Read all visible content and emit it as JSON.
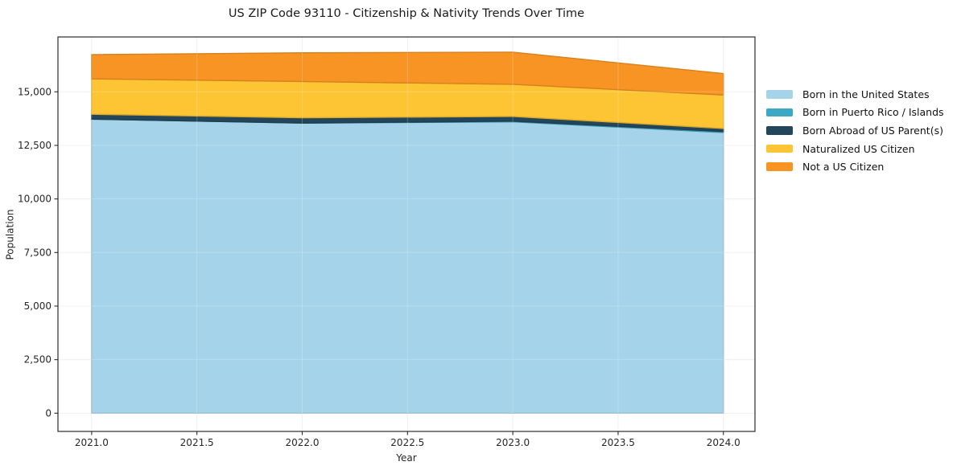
{
  "title": "US ZIP Code 93110 - Citizenship & Nativity Trends Over Time",
  "axes": {
    "xlabel": "Year",
    "ylabel": "Population"
  },
  "chart_data": {
    "type": "area",
    "stacked": true,
    "title": "US ZIP Code 93110 - Citizenship & Nativity Trends Over Time",
    "xlabel": "Year",
    "ylabel": "Population",
    "x": [
      2021,
      2022,
      2023,
      2024
    ],
    "series": [
      {
        "name": "Born in the United States",
        "color": "#a5d3e9",
        "values": [
          13725,
          13540,
          13600,
          13100
        ]
      },
      {
        "name": "Born in Puerto Rico / Islands",
        "color": "#3da8c4",
        "values": [
          0,
          0,
          30,
          50
        ]
      },
      {
        "name": "Born Abroad of US Parent(s)",
        "color": "#24465a",
        "values": [
          230,
          250,
          220,
          140
        ]
      },
      {
        "name": "Naturalized US Citizen",
        "color": "#fdc433",
        "values": [
          1650,
          1690,
          1500,
          1560
        ]
      },
      {
        "name": "Not a US Citizen",
        "color": "#f79423",
        "values": [
          1130,
          1340,
          1500,
          1000
        ]
      }
    ],
    "totals": [
      16735,
      16820,
      16850,
      15850
    ],
    "xlim": [
      2020.84,
      2024.15
    ],
    "ylim": [
      -850,
      17560
    ],
    "xticks": [
      2021.0,
      2021.5,
      2022.0,
      2022.5,
      2023.0,
      2023.5,
      2024.0
    ],
    "yticks": [
      0,
      2500,
      5000,
      7500,
      10000,
      12500,
      15000
    ],
    "xtick_labels": [
      "2021.0",
      "2021.5",
      "2022.0",
      "2022.5",
      "2023.0",
      "2023.5",
      "2024.0"
    ],
    "ytick_labels": [
      "0",
      "2,500",
      "5,000",
      "7,500",
      "10,000",
      "12,500",
      "15,000"
    ],
    "grid": true,
    "legend_position": "right of plot, upper area"
  }
}
